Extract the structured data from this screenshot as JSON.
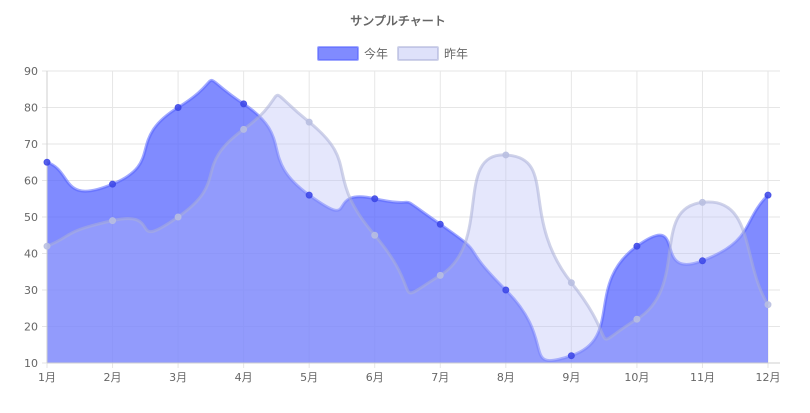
{
  "chart_data": {
    "type": "area",
    "title": "サンプルチャート",
    "categories": [
      "1月",
      "2月",
      "3月",
      "4月",
      "5月",
      "6月",
      "7月",
      "8月",
      "9月",
      "10月",
      "11月",
      "12月"
    ],
    "ylim": [
      10,
      90
    ],
    "yticks": [
      10,
      20,
      30,
      40,
      50,
      60,
      70,
      80,
      90
    ],
    "grid": true,
    "legend_position": "top",
    "series": [
      {
        "name": "今年",
        "values": [
          65,
          59,
          80,
          81,
          56,
          55,
          48,
          30,
          12,
          42,
          38,
          56
        ],
        "fill": "rgba(85,100,255,0.75)",
        "stroke": "rgba(85,100,255,0.55)",
        "point": "rgba(60,70,230,0.85)"
      },
      {
        "name": "昨年",
        "values": [
          42,
          49,
          50,
          74,
          76,
          45,
          34,
          67,
          32,
          22,
          54,
          26
        ],
        "fill": "rgba(180,185,245,0.35)",
        "stroke": "rgba(170,175,215,0.55)",
        "point": "rgba(185,190,225,0.85)"
      }
    ]
  }
}
